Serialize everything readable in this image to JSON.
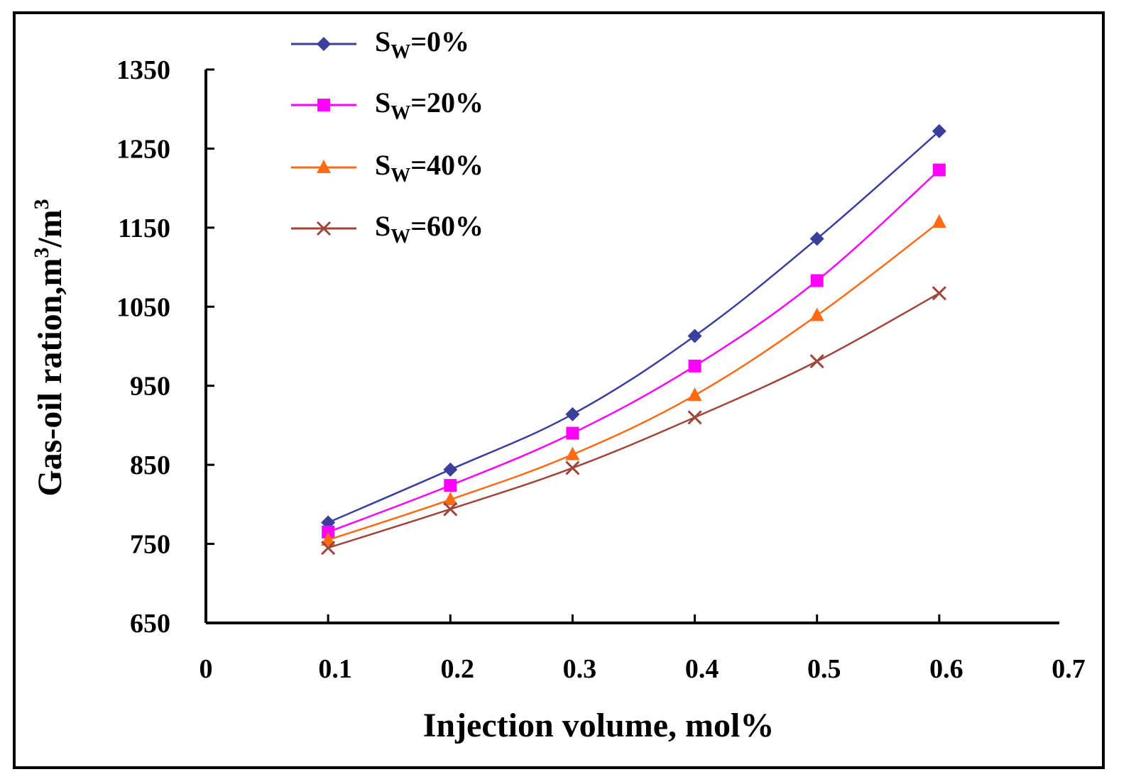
{
  "chart_data": {
    "type": "line",
    "xlabel": "Injection volume, mol%",
    "ylabel_main": "Gas-oil ration,m",
    "ylabel_sup1": "3",
    "ylabel_mid": "/m",
    "ylabel_sup2": "3",
    "xlim": [
      0,
      0.7
    ],
    "ylim": [
      650,
      1350
    ],
    "x_ticks": [
      "0",
      "0.1",
      "0.2",
      "0.3",
      "0.4",
      "0.5",
      "0.6",
      "0.7"
    ],
    "y_ticks": [
      "650",
      "750",
      "850",
      "950",
      "1050",
      "1150",
      "1250",
      "1350"
    ],
    "x": [
      0.1,
      0.2,
      0.3,
      0.4,
      0.5,
      0.6
    ],
    "legend_position": "top-left",
    "series": [
      {
        "name": "SW=0%",
        "label_main": "S",
        "label_sub": "W",
        "label_rest": "=0%",
        "color": "#3a3f9c",
        "marker": "diamond",
        "values": [
          777,
          844,
          914,
          1013,
          1136,
          1272
        ]
      },
      {
        "name": "SW=20%",
        "label_main": "S",
        "label_sub": "W",
        "label_rest": "=20%",
        "color": "#ff00ff",
        "marker": "square",
        "values": [
          765,
          824,
          890,
          975,
          1083,
          1223
        ]
      },
      {
        "name": "SW=40%",
        "label_main": "S",
        "label_sub": "W",
        "label_rest": "=40%",
        "color": "#ff6a13",
        "marker": "triangle",
        "values": [
          755,
          806,
          863,
          938,
          1039,
          1157
        ]
      },
      {
        "name": "SW=60%",
        "label_main": "S",
        "label_sub": "W",
        "label_rest": "=60%",
        "color": "#a0453a",
        "marker": "x",
        "values": [
          745,
          794,
          846,
          910,
          981,
          1067
        ]
      }
    ]
  }
}
